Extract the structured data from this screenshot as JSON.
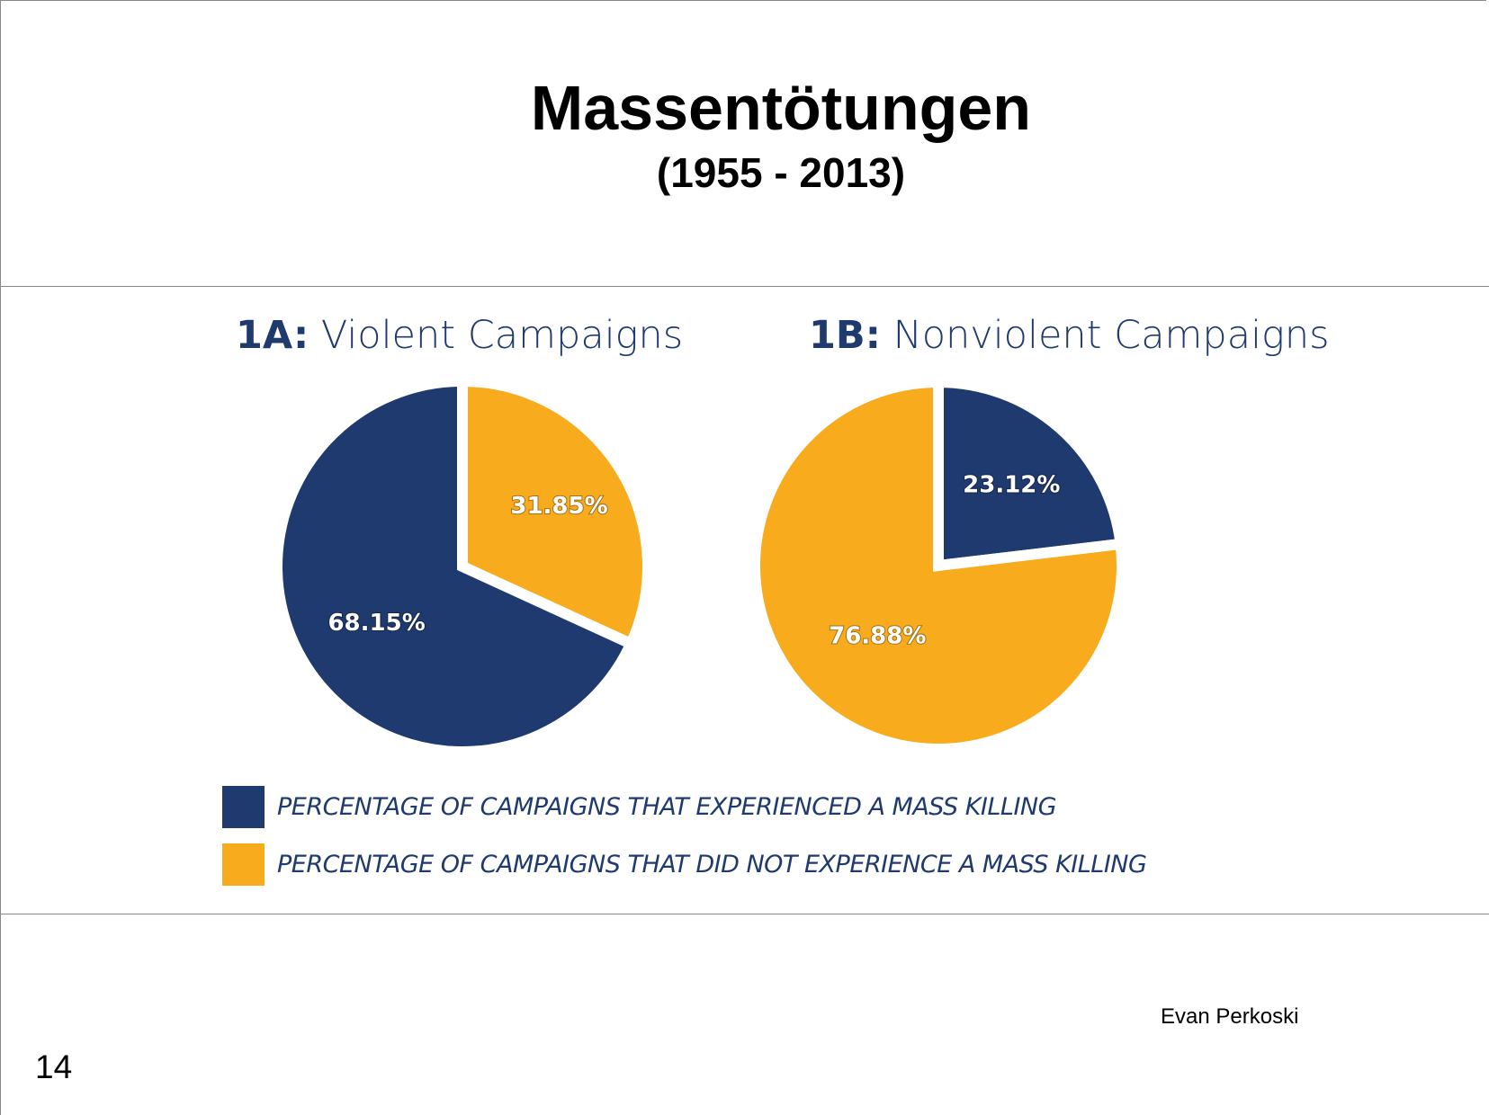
{
  "slide": {
    "title": "Massentötungen",
    "subtitle": "(1955 - 2013)",
    "author": "Evan Perkoski",
    "page_number": "14"
  },
  "chart_data": [
    {
      "type": "pie",
      "id": "1A",
      "prefix": "1A:",
      "title": "Violent Campaigns",
      "slices": [
        {
          "label": "Did not experience a mass killing",
          "value": 31.85,
          "text": "31.85%",
          "color": "#f9ab1e"
        },
        {
          "label": "Experienced a mass killing",
          "value": 68.15,
          "text": "68.15%",
          "color": "#1f3a6e"
        }
      ]
    },
    {
      "type": "pie",
      "id": "1B",
      "prefix": "1B:",
      "title": "Nonviolent Campaigns",
      "slices": [
        {
          "label": "Experienced a mass killing",
          "value": 23.12,
          "text": "23.12%",
          "color": "#1f3a6e"
        },
        {
          "label": "Did not experience a mass killing",
          "value": 76.88,
          "text": "76.88%",
          "color": "#f9ab1e"
        }
      ]
    }
  ],
  "legend": [
    {
      "text": "PERCENTAGE OF CAMPAIGNS THAT EXPERIENCED A MASS KILLING",
      "color": "#1f3a6e"
    },
    {
      "text": "PERCENTAGE OF CAMPAIGNS THAT DID NOT EXPERIENCE A MASS KILLING",
      "color": "#f9ab1e"
    }
  ]
}
